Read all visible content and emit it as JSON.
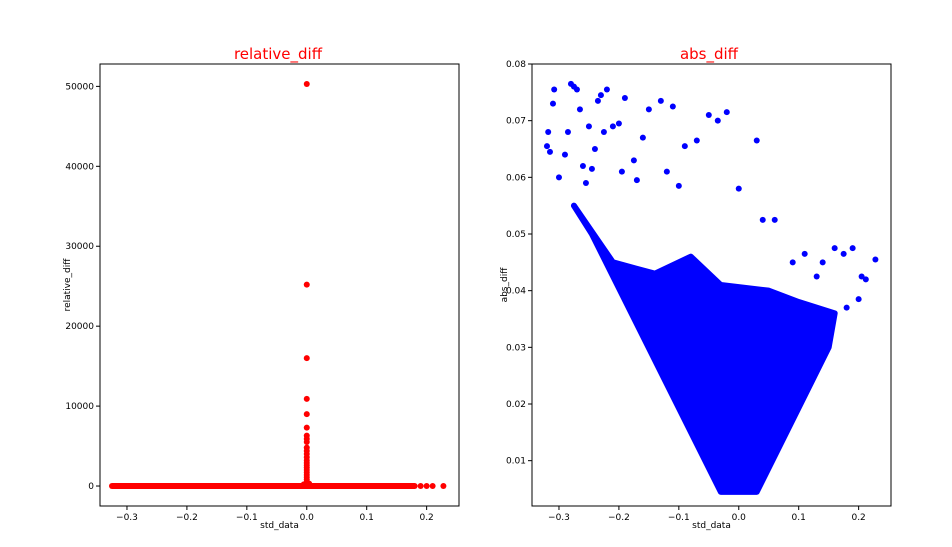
{
  "chart_data": [
    {
      "type": "scatter",
      "title": "relative_diff",
      "title_color": "#ff0000",
      "xlabel": "std_data",
      "ylabel": "relative_diff",
      "marker_color": "#ff0000",
      "xlim": [
        -0.345,
        0.254
      ],
      "ylim": [
        -2500,
        52800
      ],
      "xticks": [
        -0.3,
        -0.2,
        -0.1,
        0.0,
        0.1,
        0.2
      ],
      "xtick_labels": [
        "−0.3",
        "−0.2",
        "−0.1",
        "0.0",
        "0.1",
        "0.2"
      ],
      "yticks": [
        0,
        10000,
        20000,
        30000,
        40000,
        50000
      ],
      "ytick_labels": [
        "0",
        "10000",
        "20000",
        "30000",
        "40000",
        "50000"
      ],
      "baseline_x_range": [
        -0.325,
        0.18
      ],
      "baseline_y": 0,
      "points": [
        {
          "x": 0.0,
          "y": 50300
        },
        {
          "x": 0.0,
          "y": 25200
        },
        {
          "x": 0.0,
          "y": 16000
        },
        {
          "x": 0.0,
          "y": 10900
        },
        {
          "x": 0.0,
          "y": 9000
        },
        {
          "x": 0.0,
          "y": 7300
        },
        {
          "x": 0.0,
          "y": 6300
        },
        {
          "x": 0.0,
          "y": 5900
        },
        {
          "x": 0.0,
          "y": 5500
        },
        {
          "x": 0.0,
          "y": 4800
        },
        {
          "x": 0.0,
          "y": 4400
        },
        {
          "x": 0.0,
          "y": 4000
        },
        {
          "x": 0.0,
          "y": 3600
        },
        {
          "x": 0.0,
          "y": 3200
        },
        {
          "x": 0.0,
          "y": 2900
        },
        {
          "x": 0.0,
          "y": 2600
        },
        {
          "x": 0.0,
          "y": 2300
        },
        {
          "x": 0.0,
          "y": 2000
        },
        {
          "x": 0.0,
          "y": 1700
        },
        {
          "x": 0.0,
          "y": 1400
        },
        {
          "x": 0.0,
          "y": 1100
        },
        {
          "x": 0.0,
          "y": 800
        },
        {
          "x": 0.0,
          "y": 500
        },
        {
          "x": -0.005,
          "y": 200
        },
        {
          "x": 0.004,
          "y": 300
        },
        {
          "x": 0.19,
          "y": 0
        },
        {
          "x": 0.2,
          "y": 0
        },
        {
          "x": 0.21,
          "y": 0
        },
        {
          "x": 0.228,
          "y": 0
        }
      ]
    },
    {
      "type": "scatter",
      "title": "abs_diff",
      "title_color": "#ff0000",
      "xlabel": "std_data",
      "ylabel": "abs_diff",
      "marker_color": "#0000ff",
      "xlim": [
        -0.345,
        0.254
      ],
      "ylim": [
        0.002,
        0.08
      ],
      "xticks": [
        -0.3,
        -0.2,
        -0.1,
        0.0,
        0.1,
        0.2
      ],
      "xtick_labels": [
        "−0.3",
        "−0.2",
        "−0.1",
        "0.0",
        "0.1",
        "0.2"
      ],
      "yticks": [
        0.01,
        0.02,
        0.03,
        0.04,
        0.05,
        0.06,
        0.07,
        0.08
      ],
      "ytick_labels": [
        "0.01",
        "0.02",
        "0.03",
        "0.04",
        "0.05",
        "0.06",
        "0.07",
        "0.08"
      ],
      "dense_region": {
        "polygon": [
          [
            -0.275,
            0.055
          ],
          [
            -0.21,
            0.045
          ],
          [
            -0.14,
            0.043
          ],
          [
            -0.08,
            0.046
          ],
          [
            -0.03,
            0.041
          ],
          [
            0.05,
            0.04
          ],
          [
            0.1,
            0.038
          ],
          [
            0.16,
            0.036
          ],
          [
            0.15,
            0.03
          ],
          [
            0.03,
            0.0045
          ],
          [
            -0.03,
            0.0045
          ],
          [
            -0.245,
            0.05
          ]
        ]
      },
      "points": [
        {
          "x": -0.32,
          "y": 0.0655
        },
        {
          "x": -0.318,
          "y": 0.068
        },
        {
          "x": -0.315,
          "y": 0.0645
        },
        {
          "x": -0.31,
          "y": 0.073
        },
        {
          "x": -0.308,
          "y": 0.0755
        },
        {
          "x": -0.3,
          "y": 0.06
        },
        {
          "x": -0.29,
          "y": 0.064
        },
        {
          "x": -0.285,
          "y": 0.068
        },
        {
          "x": -0.28,
          "y": 0.0765
        },
        {
          "x": -0.275,
          "y": 0.076
        },
        {
          "x": -0.27,
          "y": 0.0755
        },
        {
          "x": -0.265,
          "y": 0.072
        },
        {
          "x": -0.26,
          "y": 0.062
        },
        {
          "x": -0.25,
          "y": 0.069
        },
        {
          "x": -0.24,
          "y": 0.065
        },
        {
          "x": -0.235,
          "y": 0.0735
        },
        {
          "x": -0.23,
          "y": 0.0745
        },
        {
          "x": -0.225,
          "y": 0.068
        },
        {
          "x": -0.22,
          "y": 0.0755
        },
        {
          "x": -0.21,
          "y": 0.069
        },
        {
          "x": -0.2,
          "y": 0.0695
        },
        {
          "x": -0.19,
          "y": 0.074
        },
        {
          "x": -0.175,
          "y": 0.063
        },
        {
          "x": -0.16,
          "y": 0.067
        },
        {
          "x": -0.15,
          "y": 0.072
        },
        {
          "x": -0.13,
          "y": 0.0735
        },
        {
          "x": -0.11,
          "y": 0.0725
        },
        {
          "x": -0.09,
          "y": 0.0655
        },
        {
          "x": -0.07,
          "y": 0.0665
        },
        {
          "x": -0.05,
          "y": 0.071
        },
        {
          "x": -0.035,
          "y": 0.07
        },
        {
          "x": -0.02,
          "y": 0.0715
        },
        {
          "x": 0.0,
          "y": 0.058
        },
        {
          "x": 0.03,
          "y": 0.0665
        },
        {
          "x": 0.04,
          "y": 0.0525
        },
        {
          "x": 0.06,
          "y": 0.0525
        },
        {
          "x": 0.09,
          "y": 0.045
        },
        {
          "x": 0.11,
          "y": 0.0465
        },
        {
          "x": 0.13,
          "y": 0.0425
        },
        {
          "x": 0.14,
          "y": 0.045
        },
        {
          "x": 0.16,
          "y": 0.0475
        },
        {
          "x": 0.175,
          "y": 0.0465
        },
        {
          "x": 0.19,
          "y": 0.0475
        },
        {
          "x": 0.205,
          "y": 0.0425
        },
        {
          "x": 0.212,
          "y": 0.042
        },
        {
          "x": 0.228,
          "y": 0.0455
        },
        {
          "x": 0.2,
          "y": 0.0385
        },
        {
          "x": 0.18,
          "y": 0.037
        },
        {
          "x": -0.255,
          "y": 0.059
        },
        {
          "x": -0.245,
          "y": 0.0615
        },
        {
          "x": -0.195,
          "y": 0.061
        },
        {
          "x": -0.17,
          "y": 0.0595
        },
        {
          "x": -0.12,
          "y": 0.061
        },
        {
          "x": -0.1,
          "y": 0.0585
        }
      ]
    }
  ]
}
